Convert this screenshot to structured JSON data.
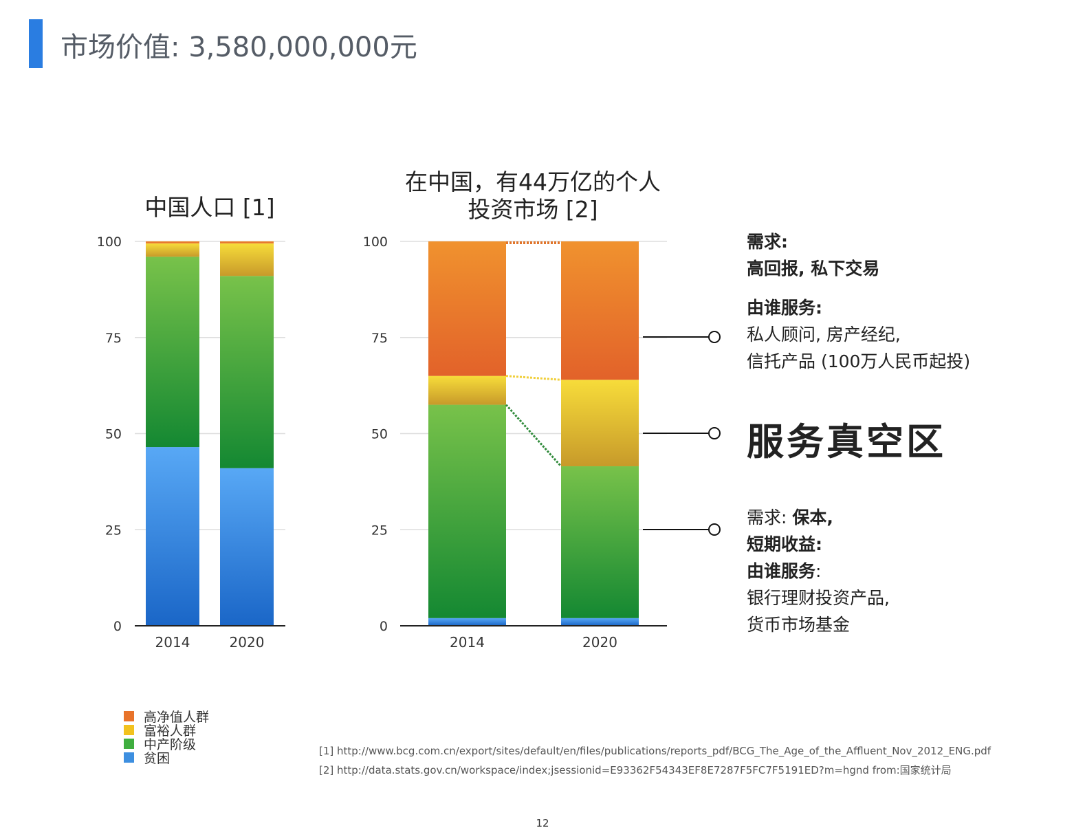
{
  "page": {
    "title": "市场价值: 3,580,000,000元",
    "page_number": "12"
  },
  "legend": [
    {
      "label": "高净值人群",
      "color": "#e8732a"
    },
    {
      "label": "富裕人群",
      "color": "#f2c21e"
    },
    {
      "label": "中产阶级",
      "color": "#3fae3f"
    },
    {
      "label": "贫困",
      "color": "#3d8fe0"
    }
  ],
  "annotations": {
    "upper_line1": "需求:",
    "upper_line2": "高回报, 私下交易",
    "upper_line3": "由谁服务:",
    "upper_line4": "私人顾问, 房产经纪,",
    "upper_line5": "信托产品 (100万人民币起投)",
    "vacuum": "服务真空区",
    "lower_line1_a": "需求: ",
    "lower_line1_b": "保本,",
    "lower_line2": "短期收益:",
    "lower_line3_a": "由谁服务",
    "lower_line3_b": ":",
    "lower_line4": "银行理财投资产品,",
    "lower_line5": "货币市场基金"
  },
  "references": [
    "[1] http://www.bcg.com.cn/export/sites/default/en/files/publications/reports_pdf/BCG_The_Age_of_the_Affluent_Nov_2012_ENG.pdf",
    "[2]  http://data.stats.gov.cn/workspace/index;jsessionid=E93362F54343EF8E7287F5FC7F5191ED?m=hgnd from:国家统计局"
  ],
  "chart_data": [
    {
      "type": "bar",
      "stacked": true,
      "title": "中国人口 [1]",
      "categories": [
        "2014",
        "2020"
      ],
      "ylim": [
        0,
        100
      ],
      "yticks": [
        0,
        25,
        50,
        75,
        100
      ],
      "grid": true,
      "series": [
        {
          "name": "贫困",
          "values": [
            46.5,
            41
          ]
        },
        {
          "name": "中产阶级",
          "values": [
            49.5,
            50
          ]
        },
        {
          "name": "富裕人群",
          "values": [
            3.5,
            8.5
          ]
        },
        {
          "name": "高净值人群",
          "values": [
            0.5,
            0.5
          ]
        }
      ]
    },
    {
      "type": "bar",
      "stacked": true,
      "title_lines": [
        "在中国，有44万亿的个人",
        "投资市场 [2]"
      ],
      "categories": [
        "2014",
        "2020"
      ],
      "ylim": [
        0,
        100
      ],
      "yticks": [
        0,
        25,
        50,
        75,
        100
      ],
      "grid": true,
      "series": [
        {
          "name": "贫困",
          "values": [
            2,
            2
          ]
        },
        {
          "name": "中产阶级",
          "values": [
            55.5,
            39.5
          ]
        },
        {
          "name": "富裕人群",
          "values": [
            7.5,
            22.5
          ]
        },
        {
          "name": "高净值人群",
          "values": [
            35,
            36
          ]
        }
      ]
    }
  ]
}
